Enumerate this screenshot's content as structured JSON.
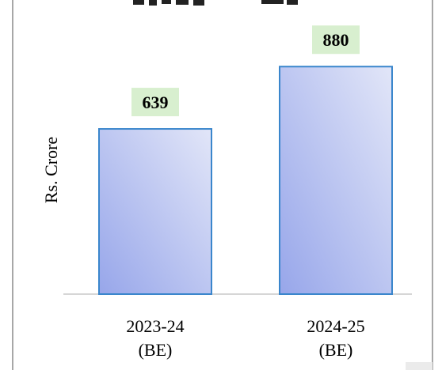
{
  "chart_data": {
    "type": "bar",
    "title": "",
    "xlabel": "",
    "ylabel": "Rs. Crore",
    "categories": [
      "2023-24\n(BE)",
      "2024-25\n(BE)"
    ],
    "values": [
      639,
      880
    ],
    "data_labels": [
      "639",
      "880"
    ],
    "ylim": [
      0,
      1000
    ],
    "grid": false,
    "legend": "none",
    "colors": {
      "bar_fill_light": "#dfe4f7",
      "bar_fill_dark": "#9aa8ea",
      "bar_stroke": "#3a86cc",
      "label_bg": "#d8efcf",
      "frame": "#7f7f7f"
    }
  }
}
